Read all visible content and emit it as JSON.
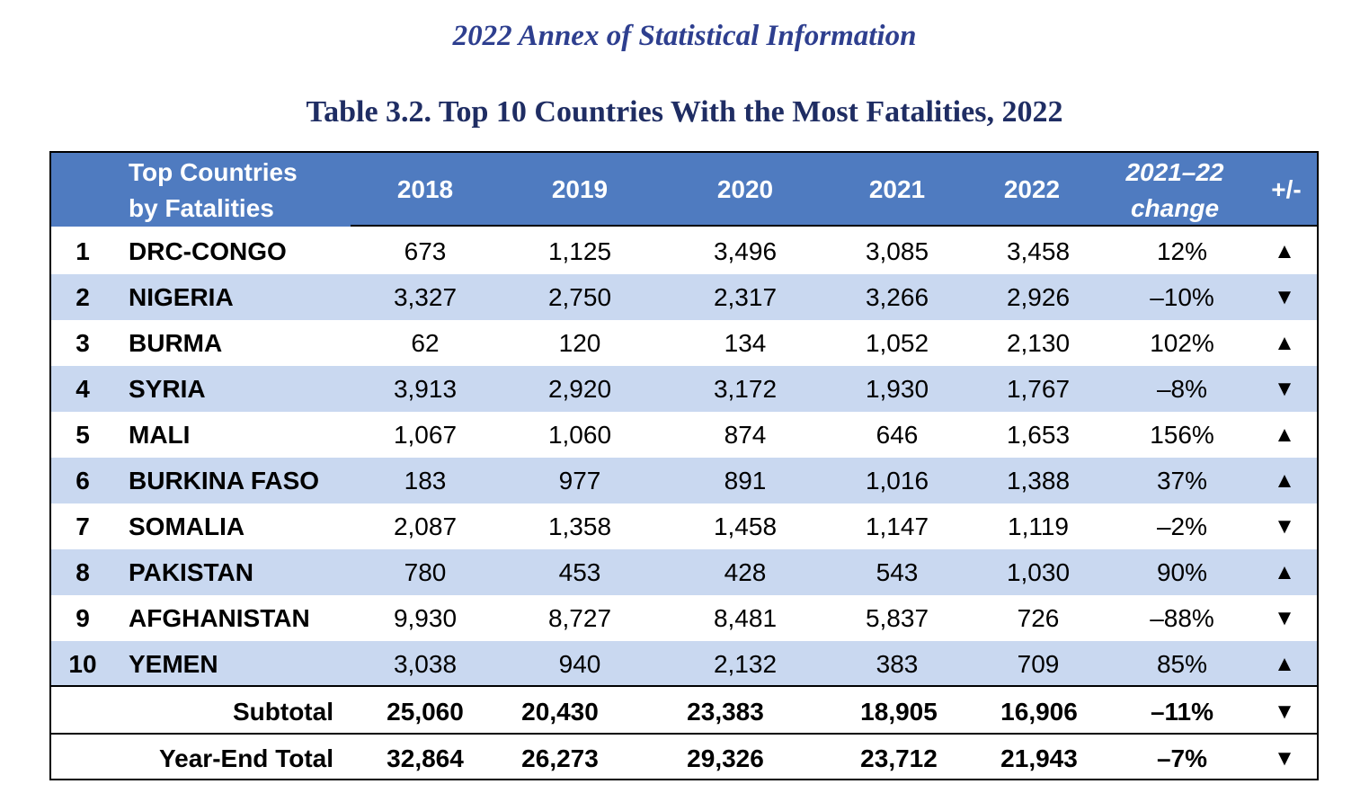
{
  "annex_title": "2022 Annex of Statistical Information",
  "table_title": "Table 3.2.  Top 10 Countries With the Most Fatalities, 2022",
  "header": {
    "country_line1": "Top Countries",
    "country_line2": "by Fatalities",
    "y2018": "2018",
    "y2019": "2019",
    "y2020": "2020",
    "y2021": "2021",
    "y2022": "2022",
    "change_line1": "2021–22",
    "change_line2": "change",
    "plusminus": "+/-"
  },
  "colors": {
    "header_bg": "#4F7BC0",
    "alt_row_bg": "#C9D8F0",
    "title": "#1F2D63",
    "annex": "#2E3F8F"
  },
  "rows": [
    {
      "rank": "1",
      "country": "DRC-CONGO",
      "y2018": "673",
      "y2019": "1,125",
      "y2020": "3,496",
      "y2021": "3,085",
      "y2022": "3,458",
      "change": "12%",
      "direction": "▲"
    },
    {
      "rank": "2",
      "country": "NIGERIA",
      "y2018": "3,327",
      "y2019": "2,750",
      "y2020": "2,317",
      "y2021": "3,266",
      "y2022": "2,926",
      "change": "–10%",
      "direction": "▼"
    },
    {
      "rank": "3",
      "country": "BURMA",
      "y2018": "62",
      "y2019": "120",
      "y2020": "134",
      "y2021": "1,052",
      "y2022": "2,130",
      "change": "102%",
      "direction": "▲"
    },
    {
      "rank": "4",
      "country": "SYRIA",
      "y2018": "3,913",
      "y2019": "2,920",
      "y2020": "3,172",
      "y2021": "1,930",
      "y2022": "1,767",
      "change": "–8%",
      "direction": "▼"
    },
    {
      "rank": "5",
      "country": "MALI",
      "y2018": "1,067",
      "y2019": "1,060",
      "y2020": "874",
      "y2021": "646",
      "y2022": "1,653",
      "change": "156%",
      "direction": "▲"
    },
    {
      "rank": "6",
      "country": "BURKINA FASO",
      "y2018": "183",
      "y2019": "977",
      "y2020": "891",
      "y2021": "1,016",
      "y2022": "1,388",
      "change": "37%",
      "direction": "▲"
    },
    {
      "rank": "7",
      "country": "SOMALIA",
      "y2018": "2,087",
      "y2019": "1,358",
      "y2020": "1,458",
      "y2021": "1,147",
      "y2022": "1,119",
      "change": "–2%",
      "direction": "▼"
    },
    {
      "rank": "8",
      "country": "PAKISTAN",
      "y2018": "780",
      "y2019": "453",
      "y2020": "428",
      "y2021": "543",
      "y2022": "1,030",
      "change": "90%",
      "direction": "▲"
    },
    {
      "rank": "9",
      "country": "AFGHANISTAN",
      "y2018": "9,930",
      "y2019": "8,727",
      "y2020": "8,481",
      "y2021": "5,837",
      "y2022": "726",
      "change": "–88%",
      "direction": "▼"
    },
    {
      "rank": "10",
      "country": "YEMEN",
      "y2018": "3,038",
      "y2019": "940",
      "y2020": "2,132",
      "y2021": "383",
      "y2022": "709",
      "change": "85%",
      "direction": "▲"
    }
  ],
  "subtotal": {
    "label": "Subtotal",
    "y2018": "25,060",
    "y2019": "20,430",
    "y2020": "23,383",
    "y2021": "18,905",
    "y2022": "16,906",
    "change": "–11%",
    "direction": "▼"
  },
  "total": {
    "label": "Year-End Total",
    "y2018": "32,864",
    "y2019": "26,273",
    "y2020": "29,326",
    "y2021": "23,712",
    "y2022": "21,943",
    "change": "–7%",
    "direction": "▼"
  }
}
